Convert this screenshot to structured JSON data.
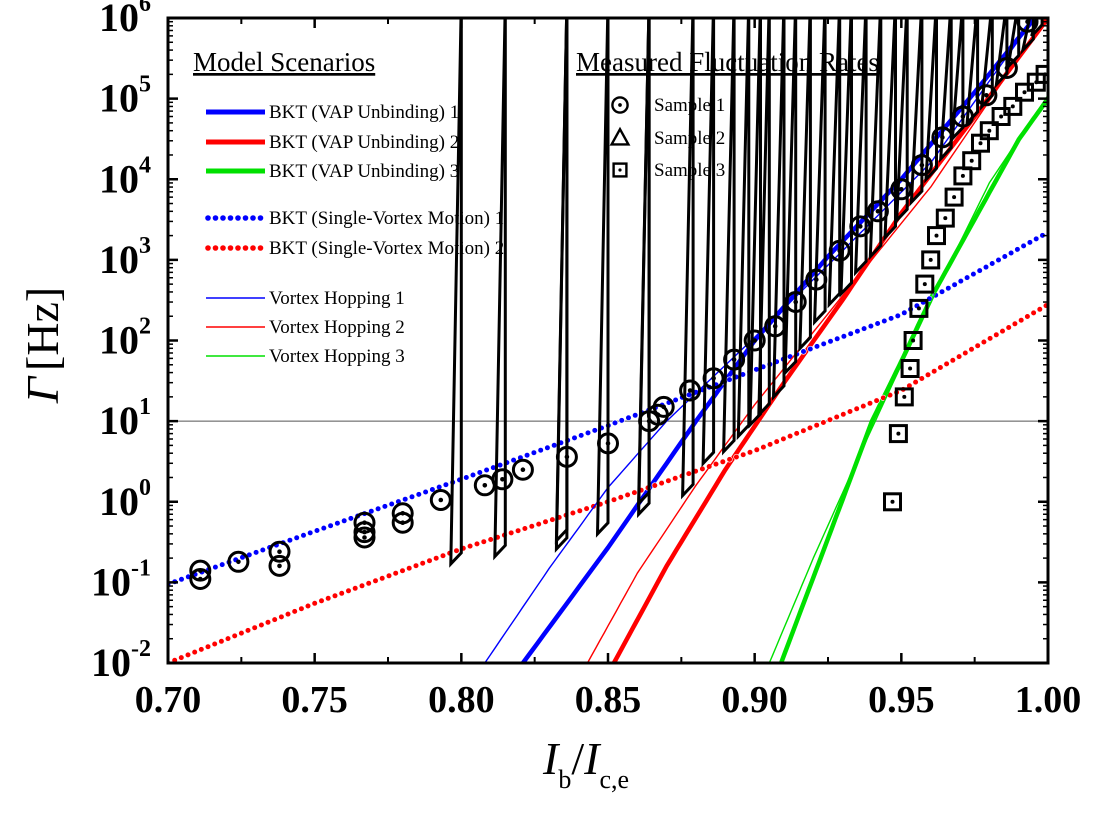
{
  "chart_data": {
    "type": "scatter",
    "xlabel": {
      "main": "I",
      "sub1": "b",
      "slash": "/",
      "main2": "I",
      "sub2": "c,e"
    },
    "ylabel": {
      "main": "Γ",
      "unit": "[Hz]"
    },
    "xlim": [
      0.7,
      1.0
    ],
    "ylim": [
      0.01,
      1000000
    ],
    "yscale": "log",
    "x_ticks": [
      "0.70",
      "0.75",
      "0.80",
      "0.85",
      "0.90",
      "0.95",
      "1.00"
    ],
    "y_ticks": [
      {
        "base": "10",
        "exp": "-2",
        "value": 0.01
      },
      {
        "base": "10",
        "exp": "-1",
        "value": 0.1
      },
      {
        "base": "10",
        "exp": "0",
        "value": 1
      },
      {
        "base": "10",
        "exp": "1",
        "value": 10
      },
      {
        "base": "10",
        "exp": "2",
        "value": 100
      },
      {
        "base": "10",
        "exp": "3",
        "value": 1000
      },
      {
        "base": "10",
        "exp": "4",
        "value": 10000
      },
      {
        "base": "10",
        "exp": "5",
        "value": 100000
      },
      {
        "base": "10",
        "exp": "6",
        "value": 1000000
      }
    ],
    "reference_line": {
      "y": 10
    },
    "legend_model_title": "Model Scenarios",
    "legend_measured_title": "Measured Fluctuation Rates",
    "legend_position": "top-left and top-center",
    "colors": {
      "blue": "#0000ff",
      "red": "#ff0000",
      "green": "#00e000",
      "black": "#000000"
    },
    "model_series": [
      {
        "name": "BKT (VAP Unbinding) 1",
        "style": "thick",
        "color": "#0000ff",
        "x": [
          0.821,
          0.85,
          0.88,
          0.9,
          0.925,
          0.95,
          0.975,
          1.0
        ],
        "y": [
          0.01,
          0.27,
          10,
          100,
          1100,
          10000,
          120000,
          1600000
        ]
      },
      {
        "name": "BKT (VAP Unbinding) 2",
        "style": "thick",
        "color": "#ff0000",
        "x": [
          0.852,
          0.87,
          0.89,
          0.91,
          0.93,
          0.95,
          0.975,
          1.0
        ],
        "y": [
          0.01,
          0.16,
          2.5,
          30,
          320,
          3800,
          60000,
          1000000
        ]
      },
      {
        "name": "BKT (VAP Unbinding) 3",
        "style": "thick",
        "color": "#00e000",
        "x": [
          0.909,
          0.925,
          0.94,
          0.95,
          0.96,
          0.975,
          0.99,
          1.0
        ],
        "y": [
          0.01,
          0.35,
          10,
          55,
          330,
          3200,
          31000,
          100000
        ]
      },
      {
        "name": "BKT (Single-Vortex Motion) 1",
        "style": "dotted",
        "color": "#0000ff",
        "x": [
          0.7,
          0.75,
          0.8,
          0.85,
          0.9,
          0.95,
          1.0
        ],
        "y": [
          0.095,
          0.43,
          1.9,
          8.8,
          43,
          210,
          2200
        ]
      },
      {
        "name": "BKT (Single-Vortex Motion) 2",
        "style": "dotted",
        "color": "#ff0000",
        "x": [
          0.7,
          0.75,
          0.8,
          0.85,
          0.9,
          0.95,
          1.0
        ],
        "y": [
          0.01,
          0.055,
          0.26,
          1.0,
          4.3,
          24,
          280
        ]
      },
      {
        "name": "Vortex Hopping 1",
        "style": "thin",
        "color": "#0000ff",
        "x": [
          0.808,
          0.83,
          0.85,
          0.87,
          0.9,
          0.93,
          0.96,
          1.0
        ],
        "y": [
          0.01,
          0.15,
          1.5,
          10,
          110,
          1300,
          16000,
          1700000
        ]
      },
      {
        "name": "Vortex Hopping 2",
        "style": "thin",
        "color": "#ff0000",
        "x": [
          0.843,
          0.86,
          0.88,
          0.9,
          0.93,
          0.96,
          1.0
        ],
        "y": [
          0.01,
          0.13,
          1.6,
          16,
          360,
          8000,
          1100000
        ]
      },
      {
        "name": "Vortex Hopping 3",
        "style": "thin",
        "color": "#00e000",
        "x": [
          0.905,
          0.92,
          0.935,
          0.95,
          0.965,
          0.98,
          1.0
        ],
        "y": [
          0.01,
          0.2,
          3.3,
          50,
          700,
          9000,
          110000
        ]
      }
    ],
    "measured_series": [
      {
        "name": "Sample 1",
        "marker": "circle-dot",
        "x": [
          0.711,
          0.711,
          0.724,
          0.738,
          0.738,
          0.767,
          0.767,
          0.767,
          0.78,
          0.78,
          0.793,
          0.808,
          0.814,
          0.821,
          0.836,
          0.85,
          0.864,
          0.867,
          0.869,
          0.878,
          0.886,
          0.893,
          0.9,
          0.907,
          0.914,
          0.921,
          0.929,
          0.936,
          0.942,
          0.95,
          0.957,
          0.964,
          0.971,
          0.979,
          0.986,
          0.993
        ],
        "y": [
          0.14,
          0.11,
          0.18,
          0.24,
          0.16,
          0.55,
          0.42,
          0.36,
          0.72,
          0.55,
          1.05,
          1.6,
          1.9,
          2.5,
          3.6,
          5.3,
          10,
          12,
          15,
          24,
          34,
          58,
          100,
          150,
          300,
          570,
          1300,
          2600,
          4000,
          7500,
          15000,
          33000,
          60000,
          110000,
          240000,
          900000
        ]
      },
      {
        "name": "Sample 2",
        "marker": "triangle",
        "x": [
          0.8,
          0.815,
          0.836,
          0.836,
          0.85,
          0.864,
          0.864,
          0.879,
          0.886,
          0.893,
          0.898,
          0.902,
          0.905,
          0.91,
          0.914,
          0.919,
          0.924,
          0.929,
          0.933,
          0.938,
          0.943,
          0.948,
          0.952,
          0.957,
          0.962,
          0.967,
          0.971,
          0.976,
          0.981,
          0.986,
          0.99,
          0.995,
          0.998
        ],
        "y": [
          0.17,
          0.21,
          0.33,
          0.26,
          0.4,
          0.95,
          0.7,
          1.2,
          3.0,
          4.2,
          6.5,
          9,
          12,
          20,
          40,
          80,
          170,
          280,
          380,
          700,
          1100,
          1900,
          3100,
          5200,
          10000,
          18000,
          32000,
          50000,
          80000,
          150000,
          250000,
          400000,
          600000
        ]
      },
      {
        "name": "Sample 3",
        "marker": "square-dot",
        "x": [
          0.947,
          0.949,
          0.951,
          0.953,
          0.954,
          0.956,
          0.958,
          0.96,
          0.962,
          0.965,
          0.968,
          0.971,
          0.974,
          0.977,
          0.98,
          0.984,
          0.988,
          0.992,
          0.996,
          0.999
        ],
        "y": [
          1.0,
          7,
          20,
          45,
          100,
          250,
          500,
          1000,
          2000,
          3300,
          6000,
          11000,
          17000,
          28000,
          40000,
          60000,
          80000,
          120000,
          160000,
          200000
        ]
      }
    ]
  }
}
